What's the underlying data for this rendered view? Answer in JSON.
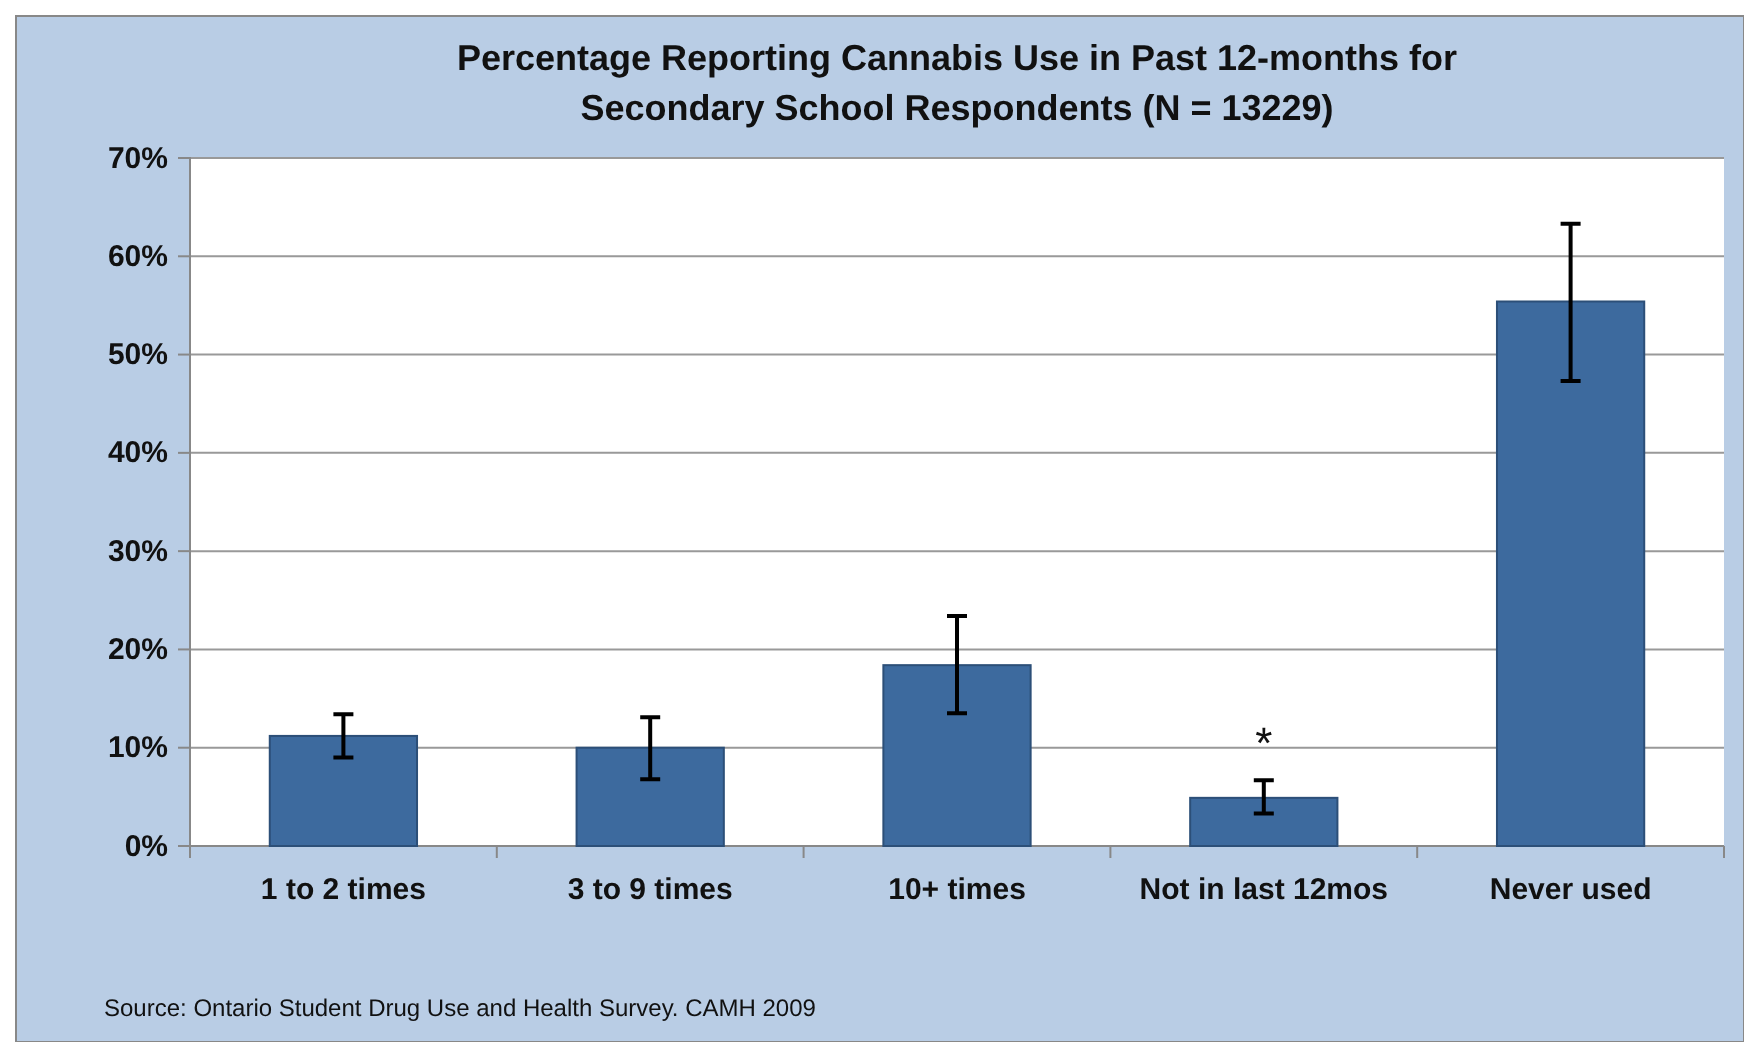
{
  "chart_data": {
    "type": "bar",
    "title": "Percentage Reporting Cannabis Use in Past 12-months for Secondary School Respondents (N = 13229)",
    "categories": [
      "1 to 2 times",
      "3 to 9 times",
      "10+ times",
      "Not in last 12mos",
      "Never used"
    ],
    "values": [
      11.2,
      10.0,
      18.4,
      4.9,
      55.4
    ],
    "errors": [
      [
        9.0,
        13.4
      ],
      [
        6.8,
        13.1
      ],
      [
        13.5,
        23.4
      ],
      [
        3.3,
        6.7
      ],
      [
        47.3,
        63.3
      ]
    ],
    "color": "#3d6a9e",
    "ylim": [
      0,
      70
    ],
    "yticks": [
      {
        "value": 0,
        "label": "0%"
      },
      {
        "value": 10,
        "label": "10%"
      },
      {
        "value": 20,
        "label": "20%"
      },
      {
        "value": 30,
        "label": "30%"
      },
      {
        "value": 40,
        "label": "40%"
      },
      {
        "value": 50,
        "label": "50%"
      },
      {
        "value": 60,
        "label": "60%"
      },
      {
        "value": 70,
        "label": "70%"
      }
    ],
    "grid": "y",
    "annotations": [
      "*",
      "Source: Ontario Student Drug Use and Health Survey. CAMH 2009"
    ]
  }
}
